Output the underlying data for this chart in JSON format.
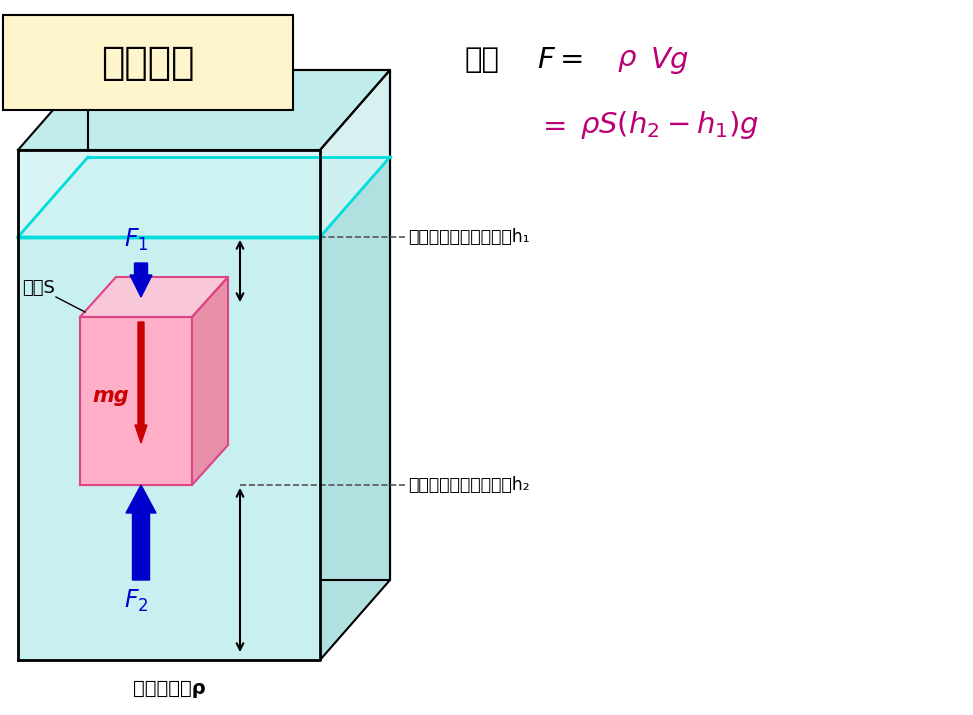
{
  "bg_color": "#ffffff",
  "title_text": "浮力の式",
  "title_bg": "#fff5cc",
  "box_water_color": "#c8f0f0",
  "box_edge_color": "#000000",
  "water_surface_color": "#00dddd",
  "right_face_color": "#b0e0e0",
  "top_face_color": "#c0ecec",
  "block_face_color": "#ffb0c8",
  "block_right_color": "#e890a8",
  "block_top_color": "#f8c8d8",
  "block_edge_color": "#dd4488",
  "F1_color": "#0000cc",
  "F2_color": "#0000cc",
  "mg_color": "#cc0000",
  "formula_black": "#000000",
  "formula_magenta": "#bb0077",
  "note1": "上面の水面からの高さh₁",
  "note2": "下面の水面からの高さh₂",
  "liquid_note": "液体の密度ρ",
  "menseki_label": "面積S"
}
